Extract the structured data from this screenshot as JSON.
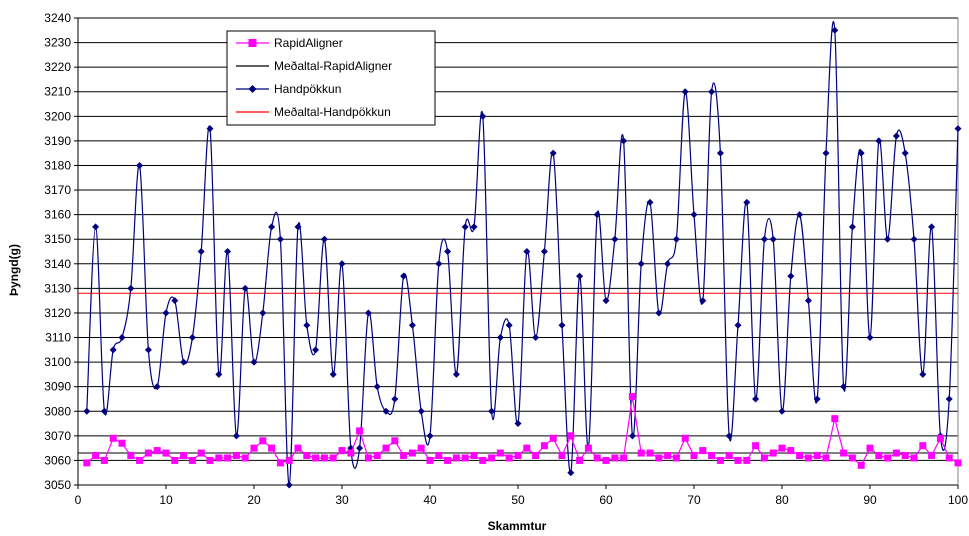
{
  "chart_data": {
    "type": "line",
    "xlabel": "Skammtur",
    "ylabel": "Þyngd(g)",
    "xlim": [
      0,
      100
    ],
    "ylim": [
      3050,
      3240
    ],
    "x_ticks": [
      0,
      10,
      20,
      30,
      40,
      50,
      60,
      70,
      80,
      90,
      100
    ],
    "y_ticks": [
      3050,
      3060,
      3070,
      3080,
      3090,
      3100,
      3110,
      3120,
      3130,
      3140,
      3150,
      3160,
      3170,
      3180,
      3190,
      3200,
      3210,
      3220,
      3230,
      3240
    ],
    "grid": "horizontal",
    "legend_position": "top-left",
    "x": [
      1,
      2,
      3,
      4,
      5,
      6,
      7,
      8,
      9,
      10,
      11,
      12,
      13,
      14,
      15,
      16,
      17,
      18,
      19,
      20,
      21,
      22,
      23,
      24,
      25,
      26,
      27,
      28,
      29,
      30,
      31,
      32,
      33,
      34,
      35,
      36,
      37,
      38,
      39,
      40,
      41,
      42,
      43,
      44,
      45,
      46,
      47,
      48,
      49,
      50,
      51,
      52,
      53,
      54,
      55,
      56,
      57,
      58,
      59,
      60,
      61,
      62,
      63,
      64,
      65,
      66,
      67,
      68,
      69,
      70,
      71,
      72,
      73,
      74,
      75,
      76,
      77,
      78,
      79,
      80,
      81,
      82,
      83,
      84,
      85,
      86,
      87,
      88,
      89,
      90,
      91,
      92,
      93,
      94,
      95,
      96,
      97,
      98,
      99,
      100
    ],
    "series": [
      {
        "name": "RapidAligner",
        "color": "#FF00FF",
        "marker": "square",
        "line": "straight",
        "values": [
          3059,
          3062,
          3060,
          3069,
          3067,
          3062,
          3060,
          3063,
          3064,
          3063,
          3060,
          3062,
          3060,
          3063,
          3060,
          3061,
          3061,
          3062,
          3061,
          3065,
          3068,
          3065,
          3059,
          3060,
          3065,
          3062,
          3061,
          3061,
          3061,
          3064,
          3063,
          3072,
          3061,
          3062,
          3065,
          3068,
          3062,
          3063,
          3065,
          3060,
          3062,
          3060,
          3061,
          3061,
          3062,
          3060,
          3061,
          3063,
          3061,
          3062,
          3065,
          3062,
          3066,
          3069,
          3062,
          3070,
          3060,
          3065,
          3061,
          3060,
          3061,
          3061,
          3086,
          3063,
          3063,
          3061,
          3062,
          3061,
          3069,
          3062,
          3064,
          3062,
          3060,
          3062,
          3060,
          3060,
          3066,
          3061,
          3063,
          3065,
          3064,
          3062,
          3061,
          3062,
          3061,
          3077,
          3063,
          3061,
          3058,
          3065,
          3062,
          3061,
          3063,
          3062,
          3061,
          3066,
          3062,
          3069,
          3061,
          3059
        ]
      },
      {
        "name": "Meðaltal-RapidAligner",
        "color": "#000000",
        "marker": "none",
        "line": "straight",
        "constant": 3063
      },
      {
        "name": "Handpökkun",
        "color": "#000080",
        "marker": "diamond",
        "line": "smooth",
        "values": [
          3080,
          3155,
          3080,
          3105,
          3110,
          3130,
          3180,
          3105,
          3090,
          3120,
          3125,
          3100,
          3110,
          3145,
          3195,
          3095,
          3145,
          3070,
          3130,
          3100,
          3120,
          3155,
          3150,
          3050,
          3155,
          3115,
          3105,
          3150,
          3095,
          3140,
          3065,
          3065,
          3120,
          3090,
          3080,
          3085,
          3135,
          3115,
          3080,
          3070,
          3140,
          3145,
          3095,
          3155,
          3155,
          3200,
          3080,
          3110,
          3115,
          3075,
          3145,
          3110,
          3145,
          3185,
          3115,
          3055,
          3135,
          3065,
          3160,
          3125,
          3150,
          3190,
          3070,
          3140,
          3165,
          3120,
          3140,
          3150,
          3210,
          3160,
          3125,
          3210,
          3185,
          3070,
          3115,
          3165,
          3085,
          3150,
          3150,
          3080,
          3135,
          3160,
          3125,
          3085,
          3185,
          3235,
          3090,
          3155,
          3185,
          3110,
          3190,
          3150,
          3192,
          3185,
          3150,
          3095,
          3155,
          3070,
          3085,
          3195
        ]
      },
      {
        "name": "Meðaltal-Handpökkun",
        "color": "#FF0000",
        "marker": "none",
        "line": "straight",
        "constant": 3128
      }
    ]
  }
}
